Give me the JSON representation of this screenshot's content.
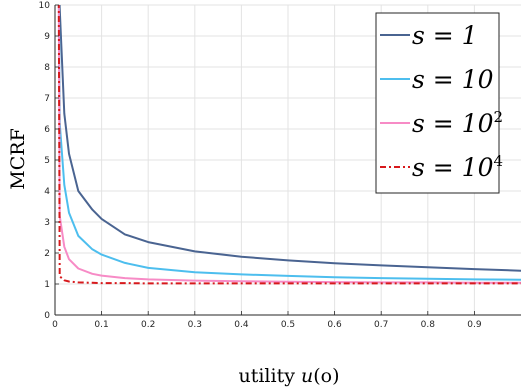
{
  "chart_data": {
    "type": "line",
    "xlabel": "utility u(o)",
    "ylabel": "MCRF",
    "xlim": [
      0,
      1
    ],
    "ylim": [
      0,
      10
    ],
    "x_ticks": [
      "0",
      "0.1",
      "0.2",
      "0.3",
      "0.4",
      "0.5",
      "0.6",
      "0.7",
      "0.8",
      "0.9"
    ],
    "y_ticks": [
      "0",
      "1",
      "2",
      "3",
      "4",
      "5",
      "6",
      "7",
      "8",
      "9",
      "10"
    ],
    "grid": true,
    "legend_position": "top-right",
    "x": [
      0.01,
      0.02,
      0.03,
      0.05,
      0.08,
      0.1,
      0.15,
      0.2,
      0.3,
      0.4,
      0.5,
      0.6,
      0.7,
      0.8,
      0.9,
      1.0
    ],
    "series": [
      {
        "name": "s = 1",
        "legend_base": "s = 1",
        "legend_sup": "",
        "color": "#4A6491",
        "dash": "",
        "values": [
          9.9,
          6.5,
          5.2,
          4.0,
          3.4,
          3.1,
          2.6,
          2.35,
          2.05,
          1.88,
          1.76,
          1.67,
          1.6,
          1.54,
          1.48,
          1.43
        ]
      },
      {
        "name": "s = 10",
        "legend_base": "s = 10",
        "legend_sup": "",
        "color": "#4DBEEE",
        "dash": "",
        "values": [
          6.2,
          4.2,
          3.3,
          2.55,
          2.12,
          1.95,
          1.68,
          1.52,
          1.38,
          1.31,
          1.26,
          1.22,
          1.19,
          1.17,
          1.15,
          1.14
        ]
      },
      {
        "name": "s = 10^2",
        "legend_base": "s = 10",
        "legend_sup": "2",
        "color": "#F78BC6",
        "dash": "",
        "values": [
          3.2,
          2.2,
          1.8,
          1.5,
          1.33,
          1.27,
          1.19,
          1.15,
          1.11,
          1.09,
          1.07,
          1.06,
          1.05,
          1.05,
          1.04,
          1.04
        ]
      },
      {
        "name": "s = 10^4",
        "legend_base": "s = 10",
        "legend_sup": "4",
        "color": "#D7191C",
        "dash": "6,3,2,3",
        "values": [
          1.25,
          1.12,
          1.08,
          1.05,
          1.04,
          1.03,
          1.03,
          1.02,
          1.02,
          1.02,
          1.02,
          1.02,
          1.02,
          1.02,
          1.02,
          1.02
        ]
      }
    ]
  }
}
